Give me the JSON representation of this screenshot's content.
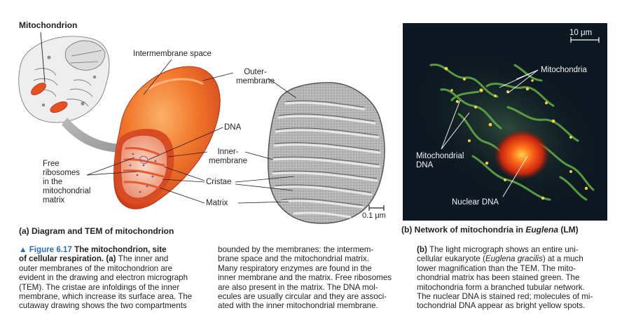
{
  "panel_a": {
    "title": "Mitochondrion",
    "labels": {
      "intermembrane_space": "Intermembrane space",
      "outer_membrane": "Outer-\nmembrane",
      "dna": "DNA",
      "inner_membrane": "Inner-\nmembrane",
      "free_ribosomes": "Free\nribosomes\nin the\nmitochondrial\nmatrix",
      "cristae": "Cristae",
      "matrix": "Matrix"
    },
    "scale_bar": "0.1 μm",
    "caption": "(a) Diagram and TEM of mitochondrion"
  },
  "panel_b": {
    "scale_bar": "10 μm",
    "labels": {
      "mitochondria": "Mitochondria",
      "mitochondrial_dna": "Mitochondrial\nDNA",
      "nuclear_dna": "Nuclear DNA"
    },
    "caption_prefix": "(b) Network of mitochondria in ",
    "caption_species": "Euglena",
    "caption_suffix": " (LM)"
  },
  "text": {
    "fig_label": "▲ Figure 6.17 ",
    "fig_title_1": "The mitochondrion, site",
    "fig_title_2": "of cellular respiration. (a) ",
    "col1_l2_rest": "The inner and",
    "col1_rest": "outer membranes of the mitochondrion are\nevident in the drawing and electron micrograph\n(TEM). The cristae are infoldings of the inner\nmembrane, which increase its surface area. The\ncutaway drawing shows the two compartments",
    "col2": "bounded by the membranes: the intermem-\nbrane space and the mitochondrial matrix.\nMany respiratory enzymes are found in the\ninner membrane and the matrix. Free ribosomes\nare also present in the matrix. The DNA mol-\necules are usually circular and they are associ-\nated with the inner mitochondrial membrane.",
    "col3_b_label": "(b) ",
    "col3_l1_rest": "The light micrograph shows an entire uni-",
    "col3_l2_a": "cellular eukaryote (",
    "col3_l2_species": "Euglena gracilis",
    "col3_l2_b": ") at a much",
    "col3_rest": "lower magnification than the TEM. The mito-\nchondrial matrix has been stained green. The\nmitochondria form a branched tubular network.\nThe nuclear DNA is stained red; molecules of mi-\ntochondrial DNA appear as bright yellow spots."
  },
  "colors": {
    "figure_blue": "#2a6fb5",
    "membrane_orange": "#e8501e",
    "micrograph_bg": "#0d1822",
    "stain_green": "#5fa843",
    "stain_red": "#e0401a",
    "stain_yellow": "#f4d23a"
  }
}
